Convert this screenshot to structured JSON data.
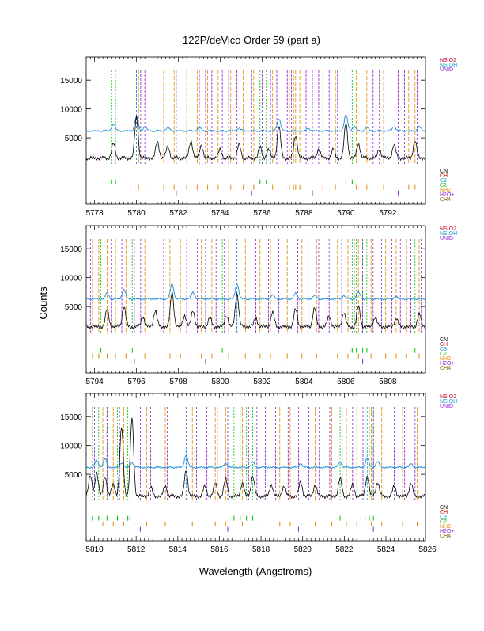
{
  "chart_data": {
    "type": "line",
    "title": "122P/deVico Order 59 (part a)",
    "xlabel": "Wavelength (Angstroms)",
    "ylabel": "Counts",
    "colors": {
      "spectrum": "#000000",
      "sky": "#1a8fd8",
      "NS O2": "#cc0033",
      "NS OH": "#1a9fd0",
      "UNID": "#8a1ad0",
      "CN": "#000000",
      "CH": "#cc0000",
      "C3": "#1a9fd0",
      "C2": "#00c000",
      "NH2": "#e08a00",
      "H2O+": "#8a1ad0",
      "CH4": "#806000"
    },
    "legend_top": [
      "NS O2",
      "NS OH",
      "UNID"
    ],
    "legend_bottom": [
      "CN",
      "CH",
      "C3",
      "C2",
      "NH2",
      "H2O+",
      "CH4"
    ],
    "panels": [
      {
        "xlim": [
          5777.6,
          5793.8
        ],
        "ylim": [
          -6500,
          19000
        ],
        "xticks": [
          5778,
          5780,
          5782,
          5784,
          5786,
          5788,
          5790,
          5792
        ],
        "yticks": [
          5000,
          10000,
          15000
        ],
        "spectrum": {
          "baseline": 1500,
          "peaks": [
            [
              5778.9,
              2500
            ],
            [
              5780.0,
              7000
            ],
            [
              5781.0,
              2800
            ],
            [
              5781.5,
              2000
            ],
            [
              5782.6,
              3000
            ],
            [
              5783.1,
              2200
            ],
            [
              5784.0,
              1500
            ],
            [
              5784.9,
              2300
            ],
            [
              5785.9,
              1800
            ],
            [
              5786.3,
              1500
            ],
            [
              5786.8,
              5500
            ],
            [
              5787.6,
              4000
            ],
            [
              5788.7,
              1600
            ],
            [
              5789.4,
              1500
            ],
            [
              5790.0,
              6000
            ],
            [
              5790.6,
              2500
            ],
            [
              5791.6,
              1600
            ],
            [
              5792.3,
              2300
            ],
            [
              5793.3,
              3000
            ]
          ]
        },
        "sky": {
          "baseline": 6200,
          "peaks": [
            [
              5778.9,
              1200
            ],
            [
              5780.0,
              2500
            ],
            [
              5780.4,
              800
            ],
            [
              5781.5,
              600
            ],
            [
              5783.0,
              600
            ],
            [
              5784.9,
              500
            ],
            [
              5786.8,
              2200
            ],
            [
              5788.2,
              400
            ],
            [
              5790.0,
              2800
            ],
            [
              5790.4,
              800
            ],
            [
              5791.0,
              600
            ],
            [
              5792.3,
              800
            ],
            [
              5793.5,
              700
            ]
          ]
        },
        "line_marks": {
          "UNID": [
            5780.0,
            5780.2,
            5780.4,
            5781.9,
            5783.0,
            5783.3,
            5783.6,
            5784.1,
            5784.4,
            5784.8,
            5785.5,
            5786.0,
            5786.4,
            5786.7,
            5787.2,
            5787.4,
            5788.1,
            5788.4,
            5788.7,
            5789.2,
            5789.6,
            5790.2,
            5791.3,
            5791.6,
            5792.5,
            5792.8,
            5793.4
          ],
          "NS OH": [
            5780.0,
            5790.0
          ],
          "C2": [
            5778.8,
            5779.0,
            5785.9,
            5786.2,
            5790.0,
            5790.3
          ],
          "NH2": [
            5779.7,
            5780.1,
            5780.6,
            5781.3,
            5781.8,
            5782.4,
            5782.9,
            5783.4,
            5783.9,
            5784.5,
            5785.1,
            5785.6,
            5786.5,
            5787.1,
            5787.3,
            5787.5,
            5787.6,
            5787.8,
            5788.9,
            5789.5,
            5790.5,
            5791.0,
            5791.8,
            5793.0,
            5793.3
          ]
        }
      },
      {
        "xlim": [
          5793.6,
          5809.8
        ],
        "ylim": [
          -6500,
          19000
        ],
        "xticks": [
          5794,
          5796,
          5798,
          5800,
          5802,
          5804,
          5806,
          5808
        ],
        "yticks": [
          5000,
          10000,
          15000
        ],
        "spectrum": {
          "baseline": 1500,
          "peaks": [
            [
              5794.6,
              3000
            ],
            [
              5795.4,
              3500
            ],
            [
              5796.3,
              1800
            ],
            [
              5796.9,
              2800
            ],
            [
              5797.7,
              6000
            ],
            [
              5798.3,
              2000
            ],
            [
              5798.7,
              2800
            ],
            [
              5799.5,
              1500
            ],
            [
              5800.3,
              2000
            ],
            [
              5800.8,
              5800
            ],
            [
              5801.7,
              1500
            ],
            [
              5802.5,
              2500
            ],
            [
              5803.6,
              3000
            ],
            [
              5804.5,
              3200
            ],
            [
              5805.2,
              1800
            ],
            [
              5805.9,
              2500
            ],
            [
              5806.6,
              3500
            ],
            [
              5807.4,
              1700
            ],
            [
              5808.4,
              1500
            ],
            [
              5809.5,
              2200
            ]
          ]
        },
        "sky": {
          "baseline": 6300,
          "peaks": [
            [
              5794.6,
              1000
            ],
            [
              5795.4,
              1700
            ],
            [
              5797.7,
              2600
            ],
            [
              5798.7,
              1200
            ],
            [
              5800.8,
              2700
            ],
            [
              5802.5,
              700
            ],
            [
              5803.6,
              1000
            ],
            [
              5804.5,
              600
            ],
            [
              5805.9,
              600
            ],
            [
              5806.6,
              1200
            ],
            [
              5808.4,
              500
            ]
          ]
        },
        "line_marks": {
          "UNID": [
            5793.8,
            5794.8,
            5795.3,
            5795.9,
            5796.2,
            5796.6,
            5797.3,
            5797.7,
            5798.4,
            5798.9,
            5799.3,
            5799.8,
            5800.2,
            5800.8,
            5801.7,
            5802.3,
            5802.8,
            5803.1,
            5803.7,
            5804.2,
            5804.7,
            5805.2,
            5805.8,
            5806.4,
            5806.8,
            5807.3,
            5807.7,
            5808.2,
            5808.6,
            5809.1,
            5809.6
          ],
          "NS OH": [
            5797.7,
            5800.8
          ],
          "C2": [
            5794.3,
            5795.8,
            5800.1,
            5806.2,
            5806.3,
            5806.5,
            5806.8,
            5807.0,
            5809.3
          ],
          "NH2": [
            5793.9,
            5794.2,
            5794.6,
            5795.0,
            5795.5,
            5796.4,
            5797.6,
            5798.1,
            5798.6,
            5799.1,
            5799.6,
            5800.4,
            5801.2,
            5801.9,
            5802.4,
            5803.2,
            5803.9,
            5804.6,
            5805.6,
            5806.1,
            5806.6,
            5807.2,
            5807.9,
            5808.4,
            5808.9,
            5809.5
          ]
        }
      },
      {
        "xlim": [
          5809.6,
          5825.9
        ],
        "ylim": [
          -6500,
          19000
        ],
        "xticks": [
          5810,
          5812,
          5814,
          5816,
          5818,
          5820,
          5822,
          5824,
          5826
        ],
        "yticks": [
          5000,
          10000,
          15000
        ],
        "spectrum": {
          "baseline": 1200,
          "peaks": [
            [
              5809.8,
              3500
            ],
            [
              5810.1,
              4000
            ],
            [
              5810.5,
              3500
            ],
            [
              5810.9,
              2200
            ],
            [
              5811.3,
              12000
            ],
            [
              5811.8,
              13500
            ],
            [
              5812.7,
              1500
            ],
            [
              5813.4,
              1800
            ],
            [
              5814.4,
              4500
            ],
            [
              5815.3,
              1700
            ],
            [
              5815.8,
              2200
            ],
            [
              5816.3,
              3000
            ],
            [
              5817.1,
              2300
            ],
            [
              5817.6,
              3500
            ],
            [
              5818.5,
              2000
            ],
            [
              5819.1,
              1800
            ],
            [
              5819.9,
              2500
            ],
            [
              5820.6,
              2000
            ],
            [
              5821.8,
              3000
            ],
            [
              5822.4,
              2000
            ],
            [
              5823.1,
              3500
            ],
            [
              5823.6,
              2500
            ],
            [
              5824.4,
              1700
            ],
            [
              5825.2,
              2300
            ]
          ]
        },
        "sky": {
          "baseline": 6200,
          "peaks": [
            [
              5810.1,
              1200
            ],
            [
              5810.5,
              1500
            ],
            [
              5811.3,
              800
            ],
            [
              5811.8,
              900
            ],
            [
              5814.4,
              2200
            ],
            [
              5816.3,
              800
            ],
            [
              5817.6,
              900
            ],
            [
              5819.9,
              700
            ],
            [
              5821.8,
              900
            ],
            [
              5823.1,
              1600
            ],
            [
              5823.6,
              1000
            ],
            [
              5825.2,
              600
            ]
          ]
        },
        "line_marks": {
          "UNID": [
            5810.0,
            5810.6,
            5811.2,
            5812.2,
            5812.7,
            5813.5,
            5814.4,
            5814.9,
            5815.4,
            5815.9,
            5816.4,
            5816.8,
            5817.4,
            5817.8,
            5818.2,
            5818.7,
            5819.3,
            5819.8,
            5820.3,
            5820.8,
            5821.3,
            5821.9,
            5822.4,
            5822.9,
            5823.4,
            5823.9,
            5824.4,
            5824.9,
            5825.4
          ],
          "NS OH": [
            5814.4,
            5823.1
          ],
          "C2": [
            5809.9,
            5810.2,
            5810.6,
            5811.1,
            5811.6,
            5811.7,
            5816.7,
            5817.0,
            5817.3,
            5817.6,
            5821.8,
            5822.8,
            5823.0,
            5823.2,
            5823.4
          ],
          "NH2": [
            5810.4,
            5810.9,
            5811.4,
            5811.9,
            5812.5,
            5813.4,
            5814.1,
            5814.7,
            5815.8,
            5816.3,
            5817.1,
            5817.9,
            5818.9,
            5819.4,
            5820.6,
            5821.4,
            5822.1,
            5822.6,
            5823.3,
            5823.8,
            5824.8,
            5825.5
          ]
        }
      }
    ]
  }
}
